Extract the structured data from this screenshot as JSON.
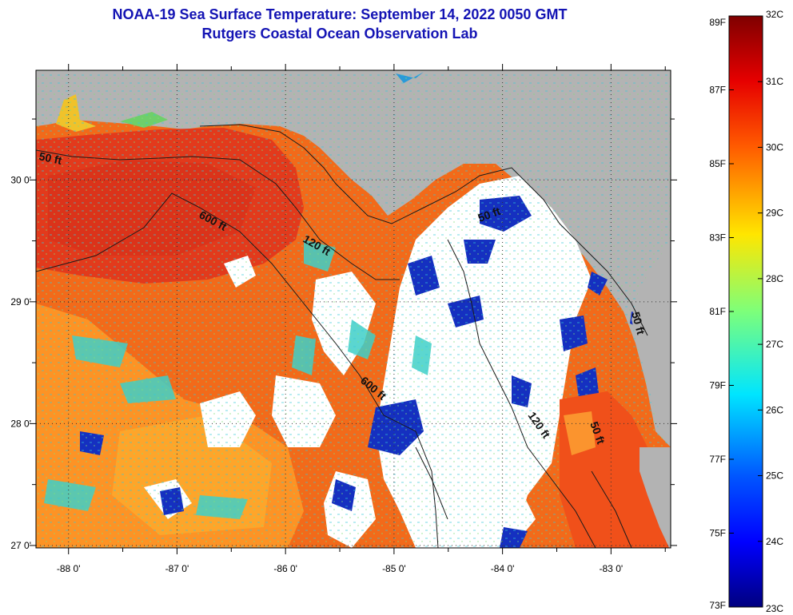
{
  "title": {
    "line1": "NOAA-19 Sea Surface Temperature:  September 14, 2022 0050 GMT",
    "line2": "Rutgers Coastal Ocean Observation Lab"
  },
  "map": {
    "lon_ticks": [
      "-88 0'",
      "-87 0'",
      "-86 0'",
      "-85 0'",
      "-84 0'",
      "-83 0'"
    ],
    "lat_ticks": [
      "30 0'",
      "29 0'",
      "28 0'",
      "27 0'"
    ],
    "lon_range": [
      -88.3,
      -82.45
    ],
    "lat_range": [
      26.98,
      30.9
    ],
    "colors": {
      "land": "#b3b3b3",
      "cloud": "#ffffff",
      "warm": "#f04a12",
      "hot": "#e8321a",
      "mid": "#ff8a1c",
      "cool": "#1e3cc8"
    },
    "contour_labels": [
      "50 ft",
      "600 ft",
      "120 ft",
      "50 ft",
      "600 ft",
      "120 ft",
      "50 ft",
      "50 ft"
    ]
  },
  "colorbar": {
    "fahrenheit_ticks": [
      "89F",
      "87F",
      "85F",
      "83F",
      "81F",
      "79F",
      "77F",
      "75F",
      "73F"
    ],
    "celsius_ticks": [
      "32C",
      "31C",
      "30C",
      "29C",
      "28C",
      "27C",
      "26C",
      "25C",
      "24C",
      "23C"
    ]
  }
}
